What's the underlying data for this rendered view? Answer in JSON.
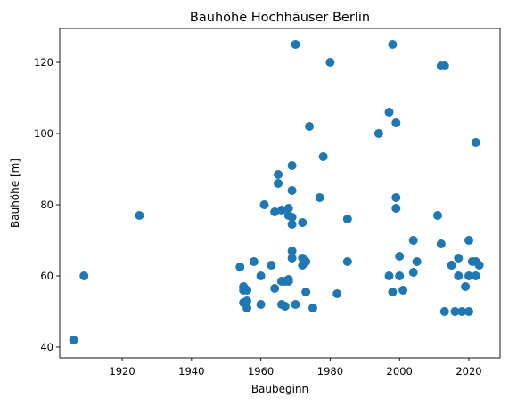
{
  "chart_data": {
    "type": "scatter",
    "title": "Bauhöhe Hochhäuser Berlin",
    "xlabel": "Baubeginn",
    "ylabel": "Bauhöhe [m]",
    "xlim": [
      1902,
      2029
    ],
    "ylim": [
      37,
      129.5
    ],
    "xticks": [
      1920,
      1940,
      1960,
      1980,
      2000,
      2020
    ],
    "yticks": [
      40,
      60,
      80,
      100,
      120
    ],
    "grid": false,
    "color": "#1f77b4",
    "points": [
      [
        1906,
        42
      ],
      [
        1909,
        60
      ],
      [
        1925,
        77
      ],
      [
        1954,
        62.5
      ],
      [
        1955,
        57
      ],
      [
        1955,
        56
      ],
      [
        1955,
        52.5
      ],
      [
        1956,
        53
      ],
      [
        1956,
        51
      ],
      [
        1956,
        56
      ],
      [
        1958,
        64
      ],
      [
        1960,
        52
      ],
      [
        1960,
        60
      ],
      [
        1961,
        80
      ],
      [
        1963,
        63
      ],
      [
        1964,
        56.5
      ],
      [
        1964,
        78
      ],
      [
        1965,
        88.5
      ],
      [
        1965,
        86
      ],
      [
        1966,
        78.5
      ],
      [
        1966,
        58.5
      ],
      [
        1966,
        52
      ],
      [
        1967,
        51.5
      ],
      [
        1967,
        58.5
      ],
      [
        1968,
        59
      ],
      [
        1968,
        58.5
      ],
      [
        1968,
        79
      ],
      [
        1968,
        77
      ],
      [
        1969,
        76.5
      ],
      [
        1969,
        74.5
      ],
      [
        1969,
        91
      ],
      [
        1969,
        84
      ],
      [
        1969,
        67
      ],
      [
        1969,
        65
      ],
      [
        1970,
        125
      ],
      [
        1970,
        52
      ],
      [
        1972,
        75
      ],
      [
        1972,
        65
      ],
      [
        1972,
        63
      ],
      [
        1973,
        64
      ],
      [
        1973,
        55.5
      ],
      [
        1974,
        102
      ],
      [
        1975,
        51
      ],
      [
        1977,
        82
      ],
      [
        1978,
        93.5
      ],
      [
        1980,
        120
      ],
      [
        1982,
        55
      ],
      [
        1985,
        76
      ],
      [
        1985,
        64
      ],
      [
        1994,
        100
      ],
      [
        1997,
        106
      ],
      [
        1997,
        60
      ],
      [
        1998,
        125
      ],
      [
        1998,
        55.5
      ],
      [
        1999,
        103
      ],
      [
        1999,
        82
      ],
      [
        1999,
        79
      ],
      [
        2000,
        65.5
      ],
      [
        2000,
        60
      ],
      [
        2001,
        56
      ],
      [
        2004,
        70
      ],
      [
        2004,
        61
      ],
      [
        2005,
        64
      ],
      [
        2011,
        77
      ],
      [
        2012,
        69
      ],
      [
        2012,
        119
      ],
      [
        2013,
        119
      ],
      [
        2013,
        50
      ],
      [
        2015,
        63
      ],
      [
        2016,
        50
      ],
      [
        2017,
        65
      ],
      [
        2017,
        60
      ],
      [
        2018,
        50
      ],
      [
        2019,
        57
      ],
      [
        2020,
        50
      ],
      [
        2020,
        70
      ],
      [
        2020,
        60
      ],
      [
        2021,
        64
      ],
      [
        2022,
        97.5
      ],
      [
        2022,
        60
      ],
      [
        2022,
        64
      ],
      [
        2023,
        63
      ]
    ]
  }
}
